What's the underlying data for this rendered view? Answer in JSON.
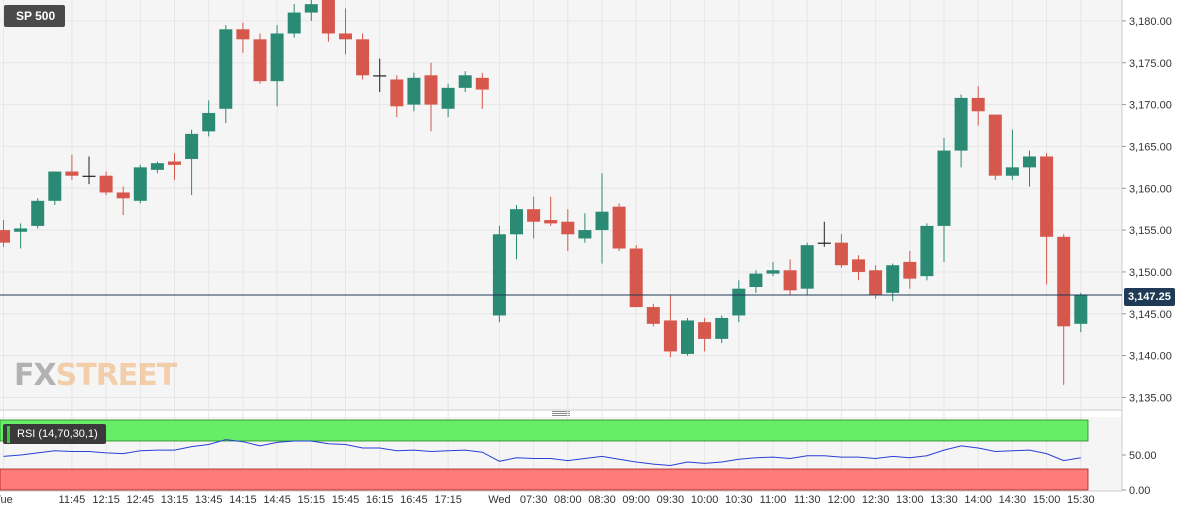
{
  "symbol": "SP 500",
  "logo": {
    "part1": "FX",
    "part2": "STREET"
  },
  "current_price": "3,147.25",
  "indicator_label": "RSI (14,70,30,1)",
  "colors": {
    "up": "#2b8a73",
    "down": "#d6574b",
    "grid": "#e6e6e6",
    "rsi_line": "#2a3fd8",
    "overbought": "#66ee66",
    "oversold": "#ff7a7a",
    "price_line": "#1e3a56"
  },
  "chart_data": {
    "type": "candlestick",
    "y_range": [
      3133.5,
      3182.5
    ],
    "y_ticks": [
      "3,180.00",
      "3,175.00",
      "3,170.00",
      "3,165.00",
      "3,160.00",
      "3,155.00",
      "3,150.00",
      "3,145.00",
      "3,140.00",
      "3,135.00"
    ],
    "y_tick_values": [
      3180,
      3175,
      3170,
      3165,
      3160,
      3155,
      3150,
      3145,
      3140,
      3135
    ],
    "last_price": 3147.25,
    "x_labels": [
      "Tue",
      "11:45",
      "12:15",
      "12:45",
      "13:15",
      "13:45",
      "14:15",
      "14:45",
      "15:15",
      "15:45",
      "16:15",
      "16:45",
      "17:15",
      "Wed",
      "07:30",
      "08:00",
      "08:30",
      "09:00",
      "09:30",
      "10:00",
      "10:30",
      "11:00",
      "11:30",
      "12:00",
      "12:30",
      "13:00",
      "13:30",
      "14:00",
      "14:30",
      "15:00",
      "15:30"
    ],
    "x_label_slots": [
      0,
      4,
      6,
      8,
      10,
      12,
      14,
      16,
      18,
      20,
      22,
      24,
      26,
      29,
      31,
      33,
      35,
      37,
      39,
      41,
      43,
      45,
      47,
      49,
      51,
      53,
      55,
      57,
      59,
      61,
      63
    ],
    "candles": [
      {
        "o": 3155.0,
        "h": 3156.2,
        "l": 3153.0,
        "c": 3153.5
      },
      {
        "o": 3154.8,
        "h": 3155.8,
        "l": 3152.8,
        "c": 3155.2
      },
      {
        "o": 3155.5,
        "h": 3158.8,
        "l": 3155.2,
        "c": 3158.5
      },
      {
        "o": 3158.5,
        "h": 3162.0,
        "l": 3158.0,
        "c": 3162.0
      },
      {
        "o": 3162.0,
        "h": 3164.0,
        "l": 3161.0,
        "c": 3161.5
      },
      {
        "o": 3161.5,
        "h": 3163.8,
        "l": 3160.5,
        "c": 3161.5
      },
      {
        "o": 3161.5,
        "h": 3162.0,
        "l": 3159.2,
        "c": 3159.5
      },
      {
        "o": 3159.5,
        "h": 3160.2,
        "l": 3156.8,
        "c": 3158.8
      },
      {
        "o": 3158.5,
        "h": 3162.8,
        "l": 3158.2,
        "c": 3162.5
      },
      {
        "o": 3162.2,
        "h": 3163.2,
        "l": 3161.8,
        "c": 3163.0
      },
      {
        "o": 3163.2,
        "h": 3164.2,
        "l": 3161.0,
        "c": 3162.8
      },
      {
        "o": 3163.5,
        "h": 3167.0,
        "l": 3159.2,
        "c": 3166.5
      },
      {
        "o": 3166.8,
        "h": 3170.5,
        "l": 3166.2,
        "c": 3169.0
      },
      {
        "o": 3169.5,
        "h": 3179.5,
        "l": 3167.8,
        "c": 3179.0
      },
      {
        "o": 3179.0,
        "h": 3179.8,
        "l": 3176.2,
        "c": 3177.8
      },
      {
        "o": 3177.8,
        "h": 3178.5,
        "l": 3172.5,
        "c": 3172.8
      },
      {
        "o": 3172.8,
        "h": 3179.5,
        "l": 3169.8,
        "c": 3178.5
      },
      {
        "o": 3178.5,
        "h": 3182.0,
        "l": 3178.0,
        "c": 3181.0
      },
      {
        "o": 3181.0,
        "h": 3182.5,
        "l": 3180.0,
        "c": 3182.0
      },
      {
        "o": 3182.5,
        "h": 3185.0,
        "l": 3177.5,
        "c": 3178.5
      },
      {
        "o": 3178.5,
        "h": 3181.5,
        "l": 3176.0,
        "c": 3177.8
      },
      {
        "o": 3177.8,
        "h": 3178.5,
        "l": 3173.0,
        "c": 3173.5
      },
      {
        "o": 3173.5,
        "h": 3175.5,
        "l": 3171.5,
        "c": 3173.5
      },
      {
        "o": 3173.0,
        "h": 3173.5,
        "l": 3168.5,
        "c": 3169.8
      },
      {
        "o": 3170.0,
        "h": 3173.8,
        "l": 3169.2,
        "c": 3173.2
      },
      {
        "o": 3173.5,
        "h": 3175.0,
        "l": 3166.8,
        "c": 3170.0
      },
      {
        "o": 3169.5,
        "h": 3172.5,
        "l": 3168.5,
        "c": 3172.0
      },
      {
        "o": 3172.0,
        "h": 3174.0,
        "l": 3171.5,
        "c": 3173.5
      },
      {
        "o": 3173.2,
        "h": 3173.8,
        "l": 3169.5,
        "c": 3171.8
      },
      {
        "o": 3144.8,
        "h": 3155.5,
        "l": 3144.0,
        "c": 3154.5
      },
      {
        "o": 3154.5,
        "h": 3158.0,
        "l": 3151.5,
        "c": 3157.5
      },
      {
        "o": 3157.5,
        "h": 3159.0,
        "l": 3154.0,
        "c": 3156.0
      },
      {
        "o": 3156.2,
        "h": 3159.0,
        "l": 3155.5,
        "c": 3155.8
      },
      {
        "o": 3156.0,
        "h": 3157.5,
        "l": 3152.5,
        "c": 3154.5
      },
      {
        "o": 3154.0,
        "h": 3157.0,
        "l": 3153.5,
        "c": 3155.0
      },
      {
        "o": 3155.0,
        "h": 3161.8,
        "l": 3151.0,
        "c": 3157.2
      },
      {
        "o": 3157.8,
        "h": 3158.2,
        "l": 3152.5,
        "c": 3152.8
      },
      {
        "o": 3152.8,
        "h": 3153.2,
        "l": 3145.8,
        "c": 3145.8
      },
      {
        "o": 3145.8,
        "h": 3146.2,
        "l": 3143.5,
        "c": 3143.8
      },
      {
        "o": 3144.2,
        "h": 3147.2,
        "l": 3139.8,
        "c": 3140.5
      },
      {
        "o": 3140.2,
        "h": 3144.5,
        "l": 3140.0,
        "c": 3144.2
      },
      {
        "o": 3144.0,
        "h": 3144.5,
        "l": 3140.5,
        "c": 3142.0
      },
      {
        "o": 3142.0,
        "h": 3144.8,
        "l": 3141.5,
        "c": 3144.5
      },
      {
        "o": 3144.8,
        "h": 3149.0,
        "l": 3144.0,
        "c": 3148.0
      },
      {
        "o": 3148.2,
        "h": 3150.2,
        "l": 3147.5,
        "c": 3149.8
      },
      {
        "o": 3149.8,
        "h": 3151.2,
        "l": 3149.5,
        "c": 3150.2
      },
      {
        "o": 3150.2,
        "h": 3151.5,
        "l": 3147.2,
        "c": 3147.8
      },
      {
        "o": 3148.0,
        "h": 3153.5,
        "l": 3147.2,
        "c": 3153.2
      },
      {
        "o": 3153.5,
        "h": 3156.0,
        "l": 3153.0,
        "c": 3153.5
      },
      {
        "o": 3153.5,
        "h": 3154.5,
        "l": 3150.5,
        "c": 3150.8
      },
      {
        "o": 3151.5,
        "h": 3152.0,
        "l": 3149.0,
        "c": 3150.0
      },
      {
        "o": 3150.2,
        "h": 3150.8,
        "l": 3146.8,
        "c": 3147.2
      },
      {
        "o": 3147.5,
        "h": 3151.0,
        "l": 3146.5,
        "c": 3150.8
      },
      {
        "o": 3151.2,
        "h": 3152.5,
        "l": 3148.0,
        "c": 3149.2
      },
      {
        "o": 3149.5,
        "h": 3155.8,
        "l": 3149.0,
        "c": 3155.5
      },
      {
        "o": 3155.5,
        "h": 3166.0,
        "l": 3151.2,
        "c": 3164.5
      },
      {
        "o": 3164.5,
        "h": 3171.2,
        "l": 3162.5,
        "c": 3170.8
      },
      {
        "o": 3170.8,
        "h": 3172.2,
        "l": 3167.5,
        "c": 3169.2
      },
      {
        "o": 3168.8,
        "h": 3168.8,
        "l": 3161.0,
        "c": 3161.5
      },
      {
        "o": 3161.5,
        "h": 3167.0,
        "l": 3161.0,
        "c": 3162.5
      },
      {
        "o": 3162.5,
        "h": 3164.5,
        "l": 3160.2,
        "c": 3163.8
      },
      {
        "o": 3163.8,
        "h": 3164.2,
        "l": 3148.5,
        "c": 3154.2
      },
      {
        "o": 3154.2,
        "h": 3154.5,
        "l": 3136.5,
        "c": 3143.5
      },
      {
        "o": 3143.8,
        "h": 3147.5,
        "l": 3142.8,
        "c": 3147.2
      }
    ],
    "rsi": {
      "label": "RSI (14,70,30,1)",
      "y_ticks": [
        "50.00",
        "0.00"
      ],
      "y_tick_values": [
        50,
        0
      ],
      "overbought": 70,
      "oversold": 30,
      "values": [
        48,
        50,
        53,
        56,
        55,
        55,
        53,
        52,
        56,
        57,
        57,
        62,
        65,
        72,
        69,
        63,
        68,
        70,
        70,
        66,
        65,
        60,
        60,
        56,
        57,
        55,
        56,
        57,
        54,
        41,
        46,
        45,
        45,
        42,
        45,
        48,
        44,
        40,
        37,
        35,
        40,
        38,
        40,
        44,
        46,
        47,
        45,
        49,
        49,
        47,
        47,
        45,
        48,
        46,
        49,
        57,
        63,
        60,
        55,
        56,
        57,
        52,
        42,
        46
      ]
    }
  }
}
